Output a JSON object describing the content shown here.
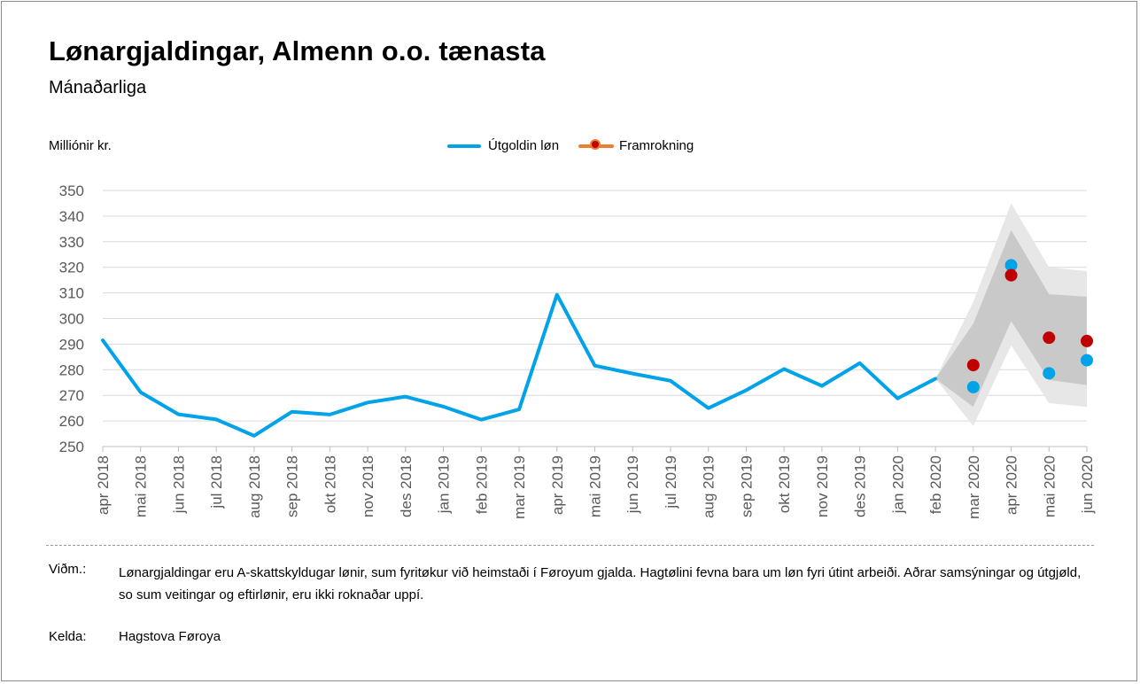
{
  "chart_data": {
    "type": "line",
    "title": "Lønargjaldingar, Almenn o.o. tænasta",
    "subtitle": "Mánaðarliga",
    "ylabel": "Milliónir kr.",
    "xlabel": "",
    "ylim": [
      250,
      350
    ],
    "yticks": [
      250,
      260,
      270,
      280,
      290,
      300,
      310,
      320,
      330,
      340,
      350
    ],
    "grid": true,
    "legend_position": "top-center",
    "categories": [
      "apr 2018",
      "mai 2018",
      "jun 2018",
      "jul 2018",
      "aug 2018",
      "sep 2018",
      "okt 2018",
      "nov 2018",
      "des 2018",
      "jan 2019",
      "feb 2019",
      "mar 2019",
      "apr 2019",
      "mai 2019",
      "jun 2019",
      "jul 2019",
      "aug 2019",
      "sep 2019",
      "okt 2019",
      "nov 2019",
      "des 2019",
      "jan 2020",
      "feb 2020",
      "mar 2020",
      "apr 2020",
      "mai 2020",
      "jun 2020"
    ],
    "series": [
      {
        "name": "Útgoldin løn",
        "color": "#00a2e8",
        "line_values": [
          291.5,
          271.2,
          262.6,
          260.6,
          254.2,
          263.6,
          262.5,
          267.2,
          269.5,
          265.6,
          260.5,
          264.5,
          309.3,
          281.6,
          278.5,
          275.7,
          265.0,
          272.0,
          280.3,
          273.7,
          282.6,
          268.8,
          276.5,
          null,
          null,
          null,
          null
        ],
        "point_values": [
          null,
          null,
          null,
          null,
          null,
          null,
          null,
          null,
          null,
          null,
          null,
          null,
          null,
          null,
          null,
          null,
          null,
          null,
          null,
          null,
          null,
          null,
          null,
          273.2,
          320.8,
          278.6,
          283.7
        ]
      },
      {
        "name": "Framrokning",
        "color": "#c00000",
        "legend_line_color": "#ed7d31",
        "values": [
          null,
          null,
          null,
          null,
          null,
          null,
          null,
          null,
          null,
          null,
          null,
          null,
          null,
          null,
          null,
          null,
          null,
          null,
          null,
          null,
          null,
          null,
          null,
          281.8,
          316.9,
          292.5,
          291.2
        ]
      }
    ],
    "bands": {
      "from_index": 22,
      "outer": {
        "color": "#e7e7e7",
        "lower": [
          276.5,
          258.0,
          289.5,
          267.0,
          265.5
        ],
        "upper": [
          276.5,
          306.5,
          345.0,
          320.0,
          318.5
        ]
      },
      "inner": {
        "color": "#c9c9c9",
        "lower": [
          276.5,
          265.5,
          299.0,
          276.0,
          274.0
        ],
        "upper": [
          276.5,
          298.0,
          334.5,
          309.5,
          308.5
        ]
      }
    }
  },
  "footer": {
    "note_label": "Viðm.:",
    "note_text": "Lønargjaldingar eru A-skattskyldugar lønir, sum fyritøkur við heimstaði í Føroyum gjalda. Hagtølini fevna bara um løn fyri útint arbeiði. Aðrar samsýningar og útgjøld, so sum veitingar og eftirlønir, eru ikki roknaðar uppí.",
    "source_label": "Kelda:",
    "source_text": "Hagstova Føroya"
  }
}
